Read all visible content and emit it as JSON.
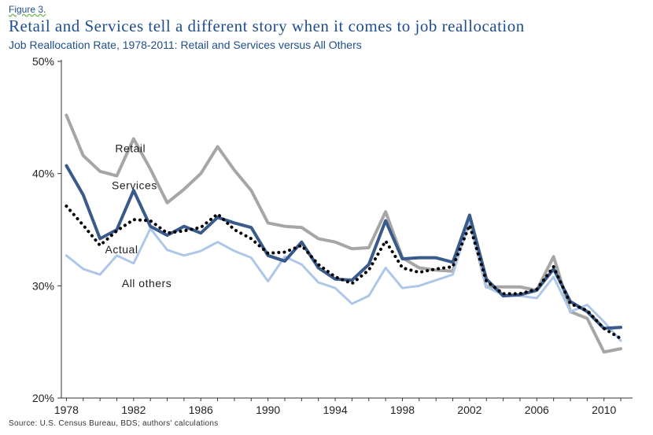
{
  "figure_label": "Figure 3.",
  "title": "Retail and Services tell a different story when it comes to job reallocation",
  "subtitle": "Job Reallocation Rate, 1978-2011:  Retail and Services versus All Others",
  "source": "Source: U.S. Census Bureau, BDS; authors' calculations",
  "colors": {
    "retail": "#a6a6a6",
    "services": "#3a5a8c",
    "actual": "#000000",
    "all_others": "#aec7e8",
    "title": "#1f4e8c"
  },
  "chart_data": {
    "type": "line",
    "title": "Job Reallocation Rate, 1978-2011:  Retail and Services versus All Others",
    "xlabel": "",
    "ylabel": "",
    "x": [
      1978,
      1979,
      1980,
      1981,
      1982,
      1983,
      1984,
      1985,
      1986,
      1987,
      1988,
      1989,
      1990,
      1991,
      1992,
      1993,
      1994,
      1995,
      1996,
      1997,
      1998,
      1999,
      2000,
      2001,
      2002,
      2003,
      2004,
      2005,
      2006,
      2007,
      2008,
      2009,
      2010,
      2011
    ],
    "xlim": [
      1977.7,
      2011.7
    ],
    "ylim": [
      20,
      50
    ],
    "x_ticks": [
      "1978",
      "1982",
      "1986",
      "1990",
      "1994",
      "1998",
      "2002",
      "2006",
      "2010"
    ],
    "x_tick_values": [
      1978,
      1982,
      1986,
      1990,
      1994,
      1998,
      2002,
      2006,
      2010
    ],
    "y_ticks": [
      "20%",
      "30%",
      "40%",
      "50%"
    ],
    "y_tick_values": [
      20,
      30,
      40,
      50
    ],
    "grid": false,
    "series": [
      {
        "name": "Retail",
        "key": "retail",
        "style": "solid",
        "width": 4,
        "values": [
          45.2,
          41.6,
          40.2,
          39.8,
          43.1,
          40.4,
          37.4,
          38.6,
          40.0,
          42.4,
          40.3,
          38.5,
          35.6,
          35.3,
          35.2,
          34.2,
          33.9,
          33.3,
          33.4,
          36.6,
          32.5,
          31.6,
          31.4,
          31.3,
          35.8,
          29.9,
          29.9,
          29.9,
          29.6,
          32.6,
          27.7,
          27.1,
          24.1,
          24.4
        ]
      },
      {
        "name": "Services",
        "key": "services",
        "style": "solid",
        "width": 4,
        "values": [
          40.7,
          38.1,
          34.2,
          35.0,
          38.5,
          35.3,
          34.5,
          35.3,
          34.7,
          36.1,
          35.6,
          35.2,
          32.7,
          32.2,
          33.9,
          31.6,
          30.6,
          30.5,
          31.9,
          35.8,
          32.4,
          32.5,
          32.5,
          32.1,
          36.3,
          30.6,
          29.1,
          29.2,
          29.6,
          31.5,
          28.6,
          27.7,
          26.2,
          26.3
        ]
      },
      {
        "name": "Actual",
        "key": "actual",
        "style": "dotted",
        "width": 4,
        "values": [
          37.1,
          35.4,
          33.6,
          34.9,
          35.9,
          35.8,
          34.7,
          34.9,
          35.2,
          36.4,
          35.0,
          34.2,
          32.9,
          33.0,
          33.6,
          31.9,
          30.8,
          30.2,
          31.4,
          34.0,
          31.6,
          31.2,
          31.5,
          31.7,
          35.4,
          30.4,
          29.3,
          29.3,
          29.7,
          31.7,
          28.4,
          27.8,
          26.2,
          25.3
        ]
      },
      {
        "name": "All others",
        "key": "all_others",
        "style": "solid",
        "width": 3,
        "values": [
          32.7,
          31.5,
          31.0,
          32.7,
          32.0,
          35.1,
          33.2,
          32.7,
          33.1,
          33.9,
          33.1,
          32.5,
          30.4,
          32.6,
          31.9,
          30.3,
          29.8,
          28.4,
          29.1,
          31.6,
          29.8,
          30.0,
          30.5,
          31.0,
          35.9,
          29.9,
          29.2,
          29.1,
          28.9,
          30.8,
          27.7,
          28.3,
          26.8,
          25.1
        ]
      }
    ]
  }
}
